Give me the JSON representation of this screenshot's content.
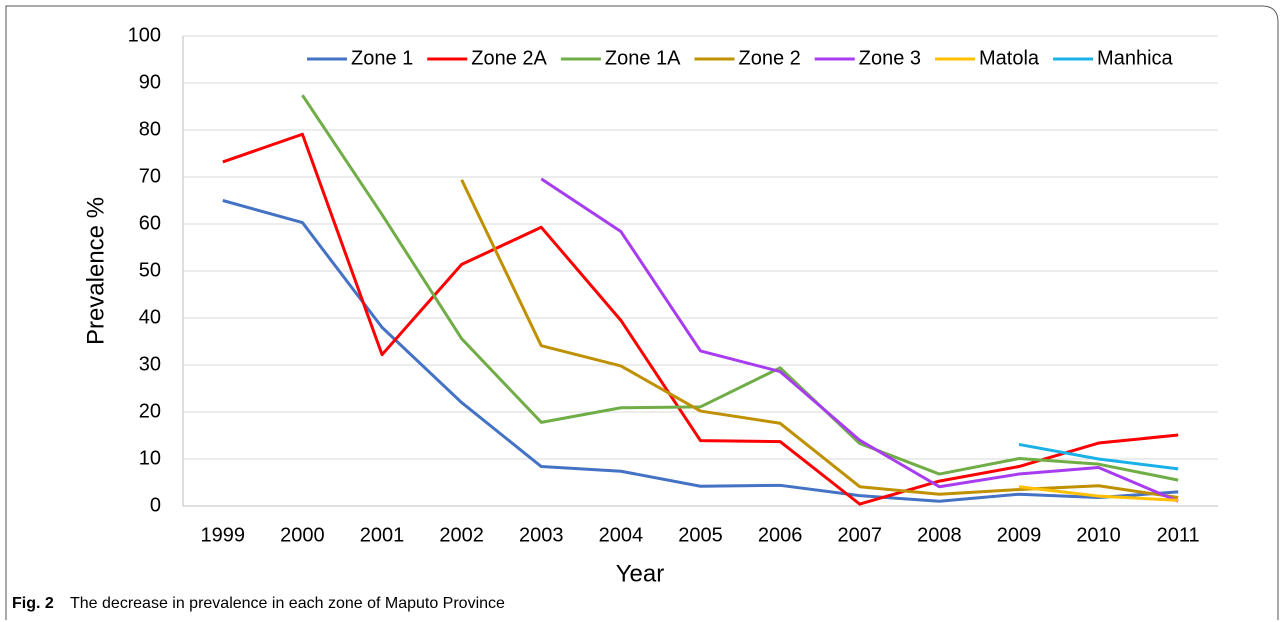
{
  "chart_data": {
    "type": "line",
    "x_label": "Year",
    "y_label": "Prevalence %",
    "caption_label": "Fig. 2",
    "caption": "The decrease in prevalence in each zone of Maputo Province",
    "categories": [
      "1999",
      "2000",
      "2001",
      "2002",
      "2003",
      "2004",
      "2005",
      "2006",
      "2007",
      "2008",
      "2009",
      "2010",
      "2011"
    ],
    "series": [
      {
        "name": "Zone 1",
        "color": "#4472c4",
        "values": [
          65,
          60.3,
          38,
          22,
          8.4,
          7.4,
          4.2,
          4.4,
          2.2,
          1.0,
          2.5,
          1.8,
          3.0
        ]
      },
      {
        "name": "Zone 2A",
        "color": "#ff0000",
        "values": [
          73.2,
          79.1,
          32.2,
          51.4,
          59.3,
          39.5,
          13.9,
          13.7,
          0.4,
          5.3,
          8.4,
          13.4,
          15.1
        ]
      },
      {
        "name": "Zone 1A",
        "color": "#70ad47",
        "values": [
          null,
          87.4,
          62,
          35.6,
          17.8,
          20.9,
          21.1,
          29.4,
          13.3,
          6.8,
          10.1,
          8.9,
          5.5
        ]
      },
      {
        "name": "Zone 2",
        "color": "#bf9000",
        "values": [
          null,
          null,
          null,
          69.4,
          34.1,
          29.8,
          20.2,
          17.6,
          4.1,
          2.5,
          3.5,
          4.3,
          1.8
        ]
      },
      {
        "name": "Zone 3",
        "color": "#a83cf0",
        "values": [
          null,
          null,
          null,
          null,
          69.6,
          58.4,
          33,
          28.6,
          14,
          4.1,
          6.8,
          8.2,
          1.0
        ]
      },
      {
        "name": "Matola",
        "color": "#ffc000",
        "values": [
          null,
          null,
          null,
          null,
          null,
          null,
          null,
          null,
          null,
          null,
          4.1,
          2.1,
          1.2
        ]
      },
      {
        "name": "Manhica",
        "color": "#1ab0e8",
        "values": [
          null,
          null,
          null,
          null,
          null,
          null,
          null,
          null,
          null,
          null,
          13.1,
          10,
          7.9
        ]
      }
    ],
    "ylim": [
      0,
      100
    ],
    "yticks": [
      0,
      10,
      20,
      30,
      40,
      50,
      60,
      70,
      80,
      90,
      100
    ],
    "grid": true,
    "legend": "top"
  }
}
